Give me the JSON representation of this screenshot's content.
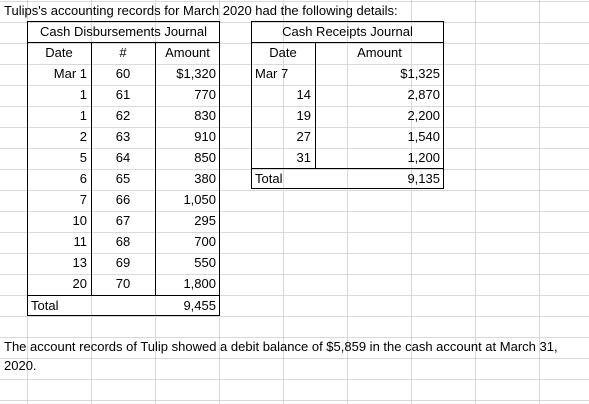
{
  "sheet": {
    "title": "Tulips's accounting records for March 2020 had the following details:",
    "note": "The account records of Tulip showed a debit balance of $5,859 in the cash account at March 31, 2020."
  },
  "disbursements": {
    "title": "Cash Disbursements Journal",
    "headers": {
      "date": "Date",
      "number": "#",
      "amount": "Amount"
    },
    "rows": [
      {
        "date": "Mar 1",
        "number": "60",
        "amount": "$1,320"
      },
      {
        "date": "1",
        "number": "61",
        "amount": "770"
      },
      {
        "date": "1",
        "number": "62",
        "amount": "830"
      },
      {
        "date": "2",
        "number": "63",
        "amount": "910"
      },
      {
        "date": "5",
        "number": "64",
        "amount": "850"
      },
      {
        "date": "6",
        "number": "65",
        "amount": "380"
      },
      {
        "date": "7",
        "number": "66",
        "amount": "1,050"
      },
      {
        "date": "10",
        "number": "67",
        "amount": "295"
      },
      {
        "date": "11",
        "number": "68",
        "amount": "700"
      },
      {
        "date": "13",
        "number": "69",
        "amount": "550"
      },
      {
        "date": "20",
        "number": "70",
        "amount": "1,800"
      }
    ],
    "total_label": "Total",
    "total_amount": "9,455"
  },
  "receipts": {
    "title": "Cash Receipts Journal",
    "headers": {
      "date": "Date",
      "amount": "Amount"
    },
    "rows": [
      {
        "date": "Mar 7",
        "amount": "$1,325"
      },
      {
        "date": "14",
        "amount": "2,870"
      },
      {
        "date": "19",
        "amount": "2,200"
      },
      {
        "date": "27",
        "amount": "1,540"
      },
      {
        "date": "31",
        "amount": "1,200"
      }
    ],
    "total_label": "Total",
    "total_amount": "9,135"
  }
}
